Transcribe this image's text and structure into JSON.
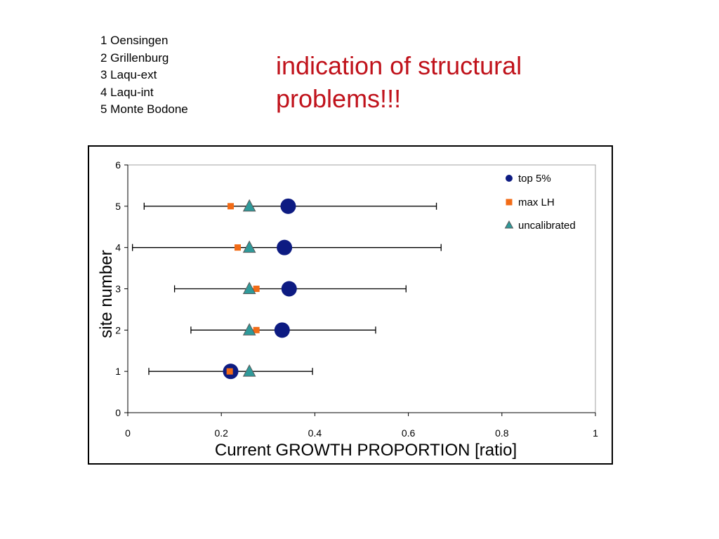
{
  "site_list": [
    "1 Oensingen",
    "2 Grillenburg",
    "3 Laqu-ext",
    "4 Laqu-int",
    "5 Monte Bodone"
  ],
  "headline": "indication of structural\nproblems!!!",
  "colors": {
    "headline": "#c0121b",
    "top5": "#0d1b82",
    "maxLH": "#f26b16",
    "uncalibrated": "#2f9a9a"
  },
  "chart_data": {
    "type": "scatter",
    "xlabel": "Current GROWTH PROPORTION [ratio]",
    "ylabel": "site number",
    "xlim": [
      0,
      1
    ],
    "ylim": [
      0,
      6
    ],
    "x_ticks": [
      "0",
      "0.2",
      "0.4",
      "0.6",
      "0.8",
      "1"
    ],
    "y_ticks": [
      "0",
      "1",
      "2",
      "3",
      "4",
      "5",
      "6"
    ],
    "grid": false,
    "legend_position": "top-right",
    "series": [
      {
        "name": "top 5%",
        "marker": "circle",
        "points": [
          {
            "site": 1,
            "x": 0.22
          },
          {
            "site": 2,
            "x": 0.33
          },
          {
            "site": 3,
            "x": 0.345
          },
          {
            "site": 4,
            "x": 0.335
          },
          {
            "site": 5,
            "x": 0.343
          }
        ]
      },
      {
        "name": "max LH",
        "marker": "square",
        "points": [
          {
            "site": 1,
            "x": 0.218
          },
          {
            "site": 2,
            "x": 0.275
          },
          {
            "site": 3,
            "x": 0.275
          },
          {
            "site": 4,
            "x": 0.235
          },
          {
            "site": 5,
            "x": 0.22
          }
        ]
      },
      {
        "name": "uncalibrated",
        "marker": "triangle",
        "points": [
          {
            "site": 1,
            "x": 0.26
          },
          {
            "site": 2,
            "x": 0.26
          },
          {
            "site": 3,
            "x": 0.26
          },
          {
            "site": 4,
            "x": 0.26
          },
          {
            "site": 5,
            "x": 0.26
          }
        ]
      }
    ],
    "error_bars": [
      {
        "site": 1,
        "low": 0.045,
        "high": 0.395
      },
      {
        "site": 2,
        "low": 0.135,
        "high": 0.53
      },
      {
        "site": 3,
        "low": 0.1,
        "high": 0.595
      },
      {
        "site": 4,
        "low": 0.01,
        "high": 0.67
      },
      {
        "site": 5,
        "low": 0.035,
        "high": 0.66
      }
    ]
  }
}
